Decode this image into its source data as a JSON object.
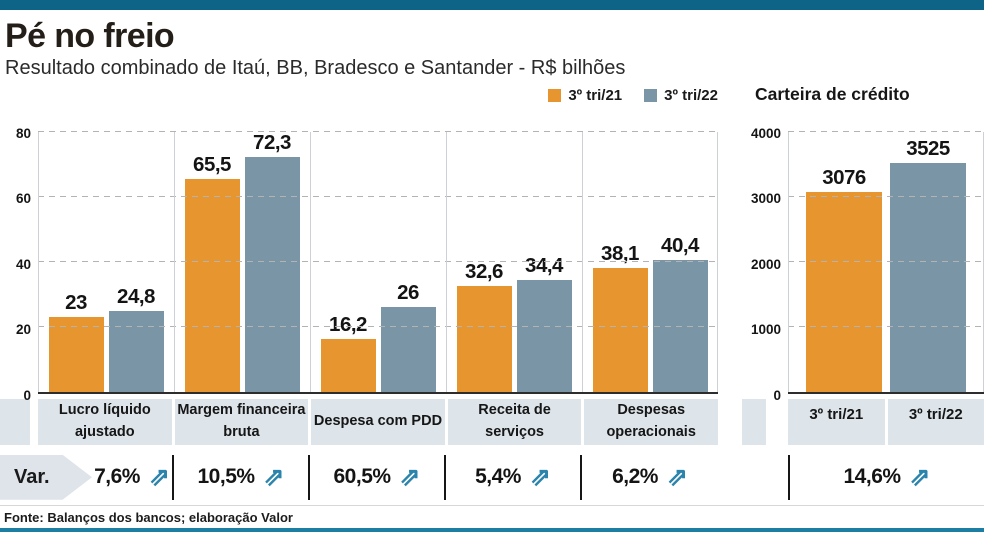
{
  "header": {
    "title": "Pé no freio",
    "subtitle": "Resultado combinado de Itaú, BB, Bradesco e Santander - R$ bilhões"
  },
  "legend": {
    "items": [
      {
        "label": "3º tri/21",
        "color": "#E6952F"
      },
      {
        "label": "3º tri/22",
        "color": "#7A96A6"
      }
    ]
  },
  "chart_data": [
    {
      "type": "bar",
      "title": "Resultado combinado de Itaú, BB, Bradesco e Santander - R$ bilhões",
      "categories": [
        "Lucro líquido ajustado",
        "Margem financeira bruta",
        "Despesa com PDD",
        "Receita de serviços",
        "Despesas operacionais"
      ],
      "series": [
        {
          "name": "3º tri/21",
          "color": "#E6952F",
          "values": [
            23,
            65.5,
            16.2,
            32.6,
            38.1
          ]
        },
        {
          "name": "3º tri/22",
          "color": "#7A96A6",
          "values": [
            24.8,
            72.3,
            26,
            34.4,
            40.4
          ]
        }
      ],
      "value_labels": [
        [
          "23",
          "65,5",
          "16,2",
          "32,6",
          "38,1"
        ],
        [
          "24,8",
          "72,3",
          "26",
          "34,4",
          "40,4"
        ]
      ],
      "ylim": [
        0,
        80
      ],
      "yticks": [
        0,
        20,
        40,
        60,
        80
      ],
      "grid": "dashed-horizontal",
      "legend_position": "top-right",
      "variations": [
        "7,6%",
        "10,5%",
        "60,5%",
        "5,4%",
        "6,2%"
      ]
    },
    {
      "type": "bar",
      "title": "Carteira de crédito",
      "categories": [
        "3º tri/21",
        "3º tri/22"
      ],
      "values": [
        3076,
        3525
      ],
      "value_labels": [
        "3076",
        "3525"
      ],
      "colors": [
        "#E6952F",
        "#7A96A6"
      ],
      "ylim": [
        0,
        4000
      ],
      "yticks": [
        0,
        1000,
        2000,
        3000,
        4000
      ],
      "grid": "dashed-horizontal",
      "variation": "14,6%"
    }
  ],
  "var_row": {
    "label": "Var.",
    "arrow_char": "⇗",
    "left_values": [
      "7,6%",
      "10,5%",
      "60,5%",
      "5,4%",
      "6,2%"
    ],
    "right_value": "14,6%"
  },
  "footer": {
    "source": "Fonte: Balanços dos bancos; elaboração Valor"
  },
  "colors": {
    "top_bar": "#0e6486",
    "bottom_bar": "#1d7ea3",
    "series_2021": "#E6952F",
    "series_2022": "#7A96A6",
    "band": "#dde4ea",
    "arrow": "#2a84ab"
  }
}
